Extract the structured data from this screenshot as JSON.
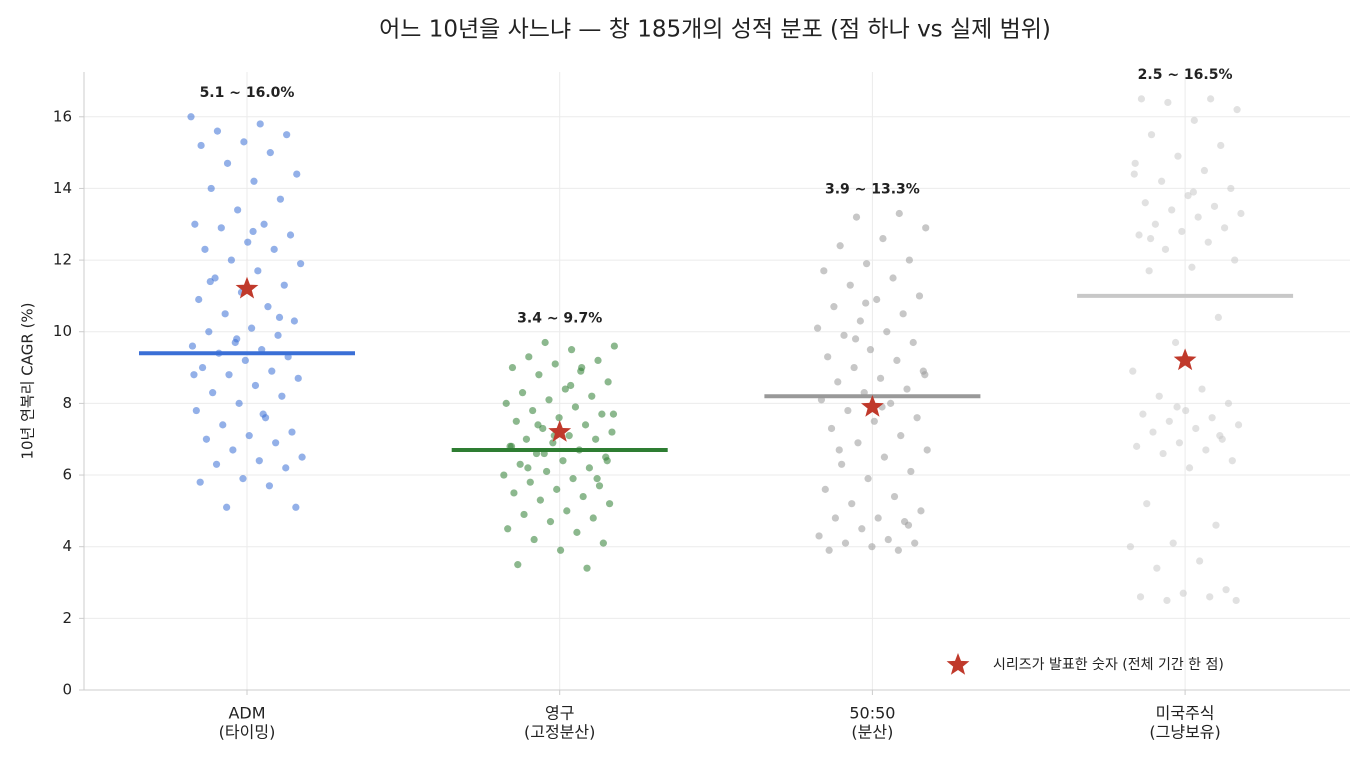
{
  "chart_data": {
    "type": "strip",
    "title": "어느 10년을 사느냐 — 창 185개의 성적 분포 (점 하나 vs 실제 범위)",
    "ylabel": "10년 연복리 CAGR (%)",
    "categories": [
      [
        "ADM",
        "(타이밍)"
      ],
      [
        "영구",
        "(고정분산)"
      ],
      [
        "50:50",
        "(분산)"
      ],
      [
        "미국주식",
        "(그냥보유)"
      ]
    ],
    "groups": [
      {
        "color": "#3a6fd6",
        "center": 9.4,
        "reported": 11.2,
        "range_label": "5.1 ~ 16.0%",
        "values": [
          16.0,
          15.8,
          15.6,
          15.5,
          15.3,
          15.2,
          15.0,
          14.7,
          14.4,
          14.2,
          14.0,
          13.7,
          13.4,
          13.0,
          13.0,
          12.9,
          12.7,
          12.5,
          12.3,
          12.3,
          12.0,
          11.9,
          11.7,
          11.5,
          11.3,
          11.1,
          10.9,
          10.7,
          10.5,
          10.3,
          10.1,
          10.0,
          9.9,
          9.7,
          9.6,
          9.5,
          9.4,
          9.3,
          9.2,
          9.0,
          8.9,
          8.8,
          8.7,
          8.5,
          8.3,
          8.2,
          8.0,
          7.8,
          7.6,
          7.4,
          7.2,
          7.1,
          7.0,
          6.9,
          6.7,
          6.5,
          6.4,
          6.3,
          6.2,
          5.9,
          5.8,
          5.7,
          5.1,
          5.1,
          12.8,
          11.4,
          10.4,
          9.8,
          8.8,
          7.7
        ]
      },
      {
        "color": "#2e7d32",
        "center": 6.7,
        "reported": 7.2,
        "range_label": "3.4 ~ 9.7%",
        "values": [
          9.7,
          9.6,
          9.5,
          9.3,
          9.2,
          9.1,
          9.0,
          9.0,
          8.8,
          8.6,
          8.4,
          8.3,
          8.2,
          8.1,
          8.0,
          7.9,
          7.8,
          7.7,
          7.6,
          7.5,
          7.4,
          7.3,
          7.2,
          7.1,
          7.0,
          7.0,
          6.9,
          6.8,
          6.7,
          6.6,
          6.5,
          6.4,
          6.3,
          6.2,
          6.1,
          6.0,
          5.9,
          5.8,
          5.7,
          5.6,
          5.5,
          5.4,
          5.3,
          5.2,
          5.0,
          4.9,
          4.8,
          4.7,
          4.5,
          4.4,
          4.2,
          4.1,
          3.9,
          3.5,
          3.4,
          6.6,
          7.7,
          8.5,
          6.2,
          5.9,
          7.1,
          6.8,
          8.9,
          7.4,
          6.4
        ]
      },
      {
        "color": "#999999",
        "center": 8.2,
        "reported": 7.9,
        "range_label": "3.9 ~ 13.3%",
        "values": [
          13.3,
          13.2,
          12.9,
          12.6,
          12.4,
          12.0,
          11.9,
          11.7,
          11.5,
          11.3,
          11.0,
          10.9,
          10.7,
          10.5,
          10.3,
          10.1,
          10.0,
          9.9,
          9.7,
          9.5,
          9.3,
          9.2,
          9.0,
          8.9,
          8.7,
          8.6,
          8.4,
          8.3,
          8.1,
          8.0,
          7.8,
          7.6,
          7.5,
          7.3,
          7.1,
          6.9,
          6.7,
          6.5,
          6.3,
          6.1,
          5.9,
          5.6,
          5.4,
          5.2,
          5.0,
          4.8,
          4.8,
          4.7,
          4.5,
          4.3,
          4.2,
          4.1,
          4.1,
          4.0,
          3.9,
          3.9,
          9.8,
          8.8,
          7.9,
          6.7,
          4.6,
          10.8
        ]
      },
      {
        "color": "#c8c8c8",
        "center": 11.0,
        "reported": 9.2,
        "range_label": "2.5 ~ 16.5%",
        "values": [
          16.5,
          16.5,
          16.4,
          16.2,
          15.9,
          15.5,
          15.2,
          14.9,
          14.7,
          14.5,
          14.2,
          14.0,
          13.8,
          13.6,
          13.5,
          13.4,
          13.3,
          13.2,
          13.0,
          12.9,
          12.8,
          12.7,
          12.5,
          12.3,
          12.0,
          11.8,
          11.7,
          10.4,
          9.7,
          8.9,
          8.4,
          8.2,
          8.0,
          7.8,
          7.7,
          7.6,
          7.5,
          7.4,
          7.3,
          7.2,
          7.0,
          6.9,
          6.8,
          6.7,
          6.6,
          6.4,
          6.2,
          5.2,
          4.6,
          4.1,
          4.0,
          3.6,
          3.4,
          2.8,
          2.7,
          2.6,
          2.6,
          2.5,
          2.5,
          13.9,
          12.6,
          7.1,
          7.9,
          14.4
        ]
      }
    ],
    "reported_color": "#c0392b",
    "legend": {
      "label": "시리즈가 발표한 숫자 (전체 기간 한 점)",
      "corner": "lower right"
    },
    "ylim": [
      0,
      17.25
    ],
    "yticks": [
      0,
      2,
      4,
      6,
      8,
      10,
      12,
      14,
      16
    ],
    "grid": true
  }
}
